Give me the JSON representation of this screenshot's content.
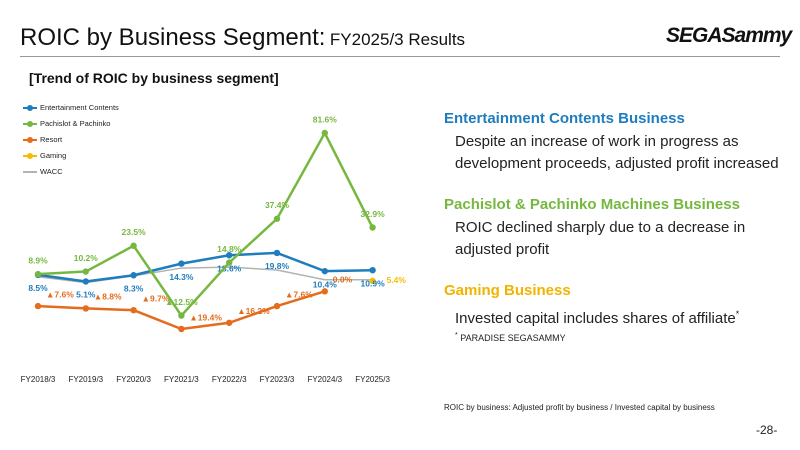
{
  "header": {
    "title": "ROIC by Business Segment:",
    "title_suffix": "FY2025/3 Results",
    "logo": "SEGASammy"
  },
  "section_title": "[Trend of ROIC by business segment]",
  "chart_data": {
    "type": "line",
    "categories": [
      "FY2018/3",
      "FY2019/3",
      "FY2020/3",
      "FY2021/3",
      "FY2022/3",
      "FY2023/3",
      "FY2024/3",
      "FY2025/3"
    ],
    "series": [
      {
        "name": "Entertainment Contents",
        "color": "#1f7dbd",
        "marker": true,
        "values": [
          8.5,
          5.1,
          8.3,
          14.3,
          18.6,
          19.8,
          10.4,
          10.9
        ],
        "value_labels": [
          "8.5%",
          "5.1%",
          "8.3%",
          "14.3%",
          "18.6%",
          "19.8%",
          "10.4%",
          "10.9%"
        ]
      },
      {
        "name": "Pachislot & Pachinko",
        "color": "#76b83f",
        "marker": true,
        "values": [
          8.9,
          10.2,
          23.5,
          -12.5,
          14.8,
          37.4,
          81.6,
          32.9
        ],
        "value_labels": [
          "8.9%",
          "10.2%",
          "23.5%",
          "▲12.5%",
          "14.8%",
          "37.4%",
          "81.6%",
          "32.9%"
        ]
      },
      {
        "name": "Resort",
        "color": "#e46c1c",
        "marker": true,
        "values": [
          -7.6,
          -8.8,
          -9.7,
          -19.4,
          -16.2,
          -7.6,
          0.0,
          null
        ],
        "value_labels": [
          "▲7.6%",
          "▲8.8%",
          "▲9.7%",
          "▲19.4%",
          "▲16.2%",
          "▲7.6%",
          "0.0%",
          null
        ]
      },
      {
        "name": "Gaming",
        "color": "#f5bd00",
        "marker": true,
        "values": [
          null,
          null,
          null,
          null,
          null,
          null,
          null,
          5.4
        ],
        "value_labels": [
          null,
          null,
          null,
          null,
          null,
          null,
          null,
          "5.4%"
        ]
      },
      {
        "name": "WACC",
        "color": "#b3b3b3",
        "marker": false,
        "values": [
          7.5,
          4.5,
          8,
          12,
          12.5,
          11,
          6,
          6
        ]
      }
    ]
  },
  "notes": [
    {
      "heading": "Entertainment Contents Business",
      "color": "#1f7dbd",
      "body": "Despite an increase of work in progress as development proceeds, adjusted profit increased"
    },
    {
      "heading": "Pachislot & Pachinko Machines Business",
      "color": "#76b83f",
      "body": "ROIC declined sharply due to a decrease in adjusted profit"
    },
    {
      "heading": "Gaming Business",
      "color": "#f0b400",
      "body": "Invested capital includes shares of affiliate",
      "marker": "*"
    }
  ],
  "footnote": {
    "marker": "*",
    "text": "PARADISE SEGASAMMY"
  },
  "formula": "ROIC by business: Adjusted profit by business / Invested capital by business",
  "page_number": "-28-"
}
